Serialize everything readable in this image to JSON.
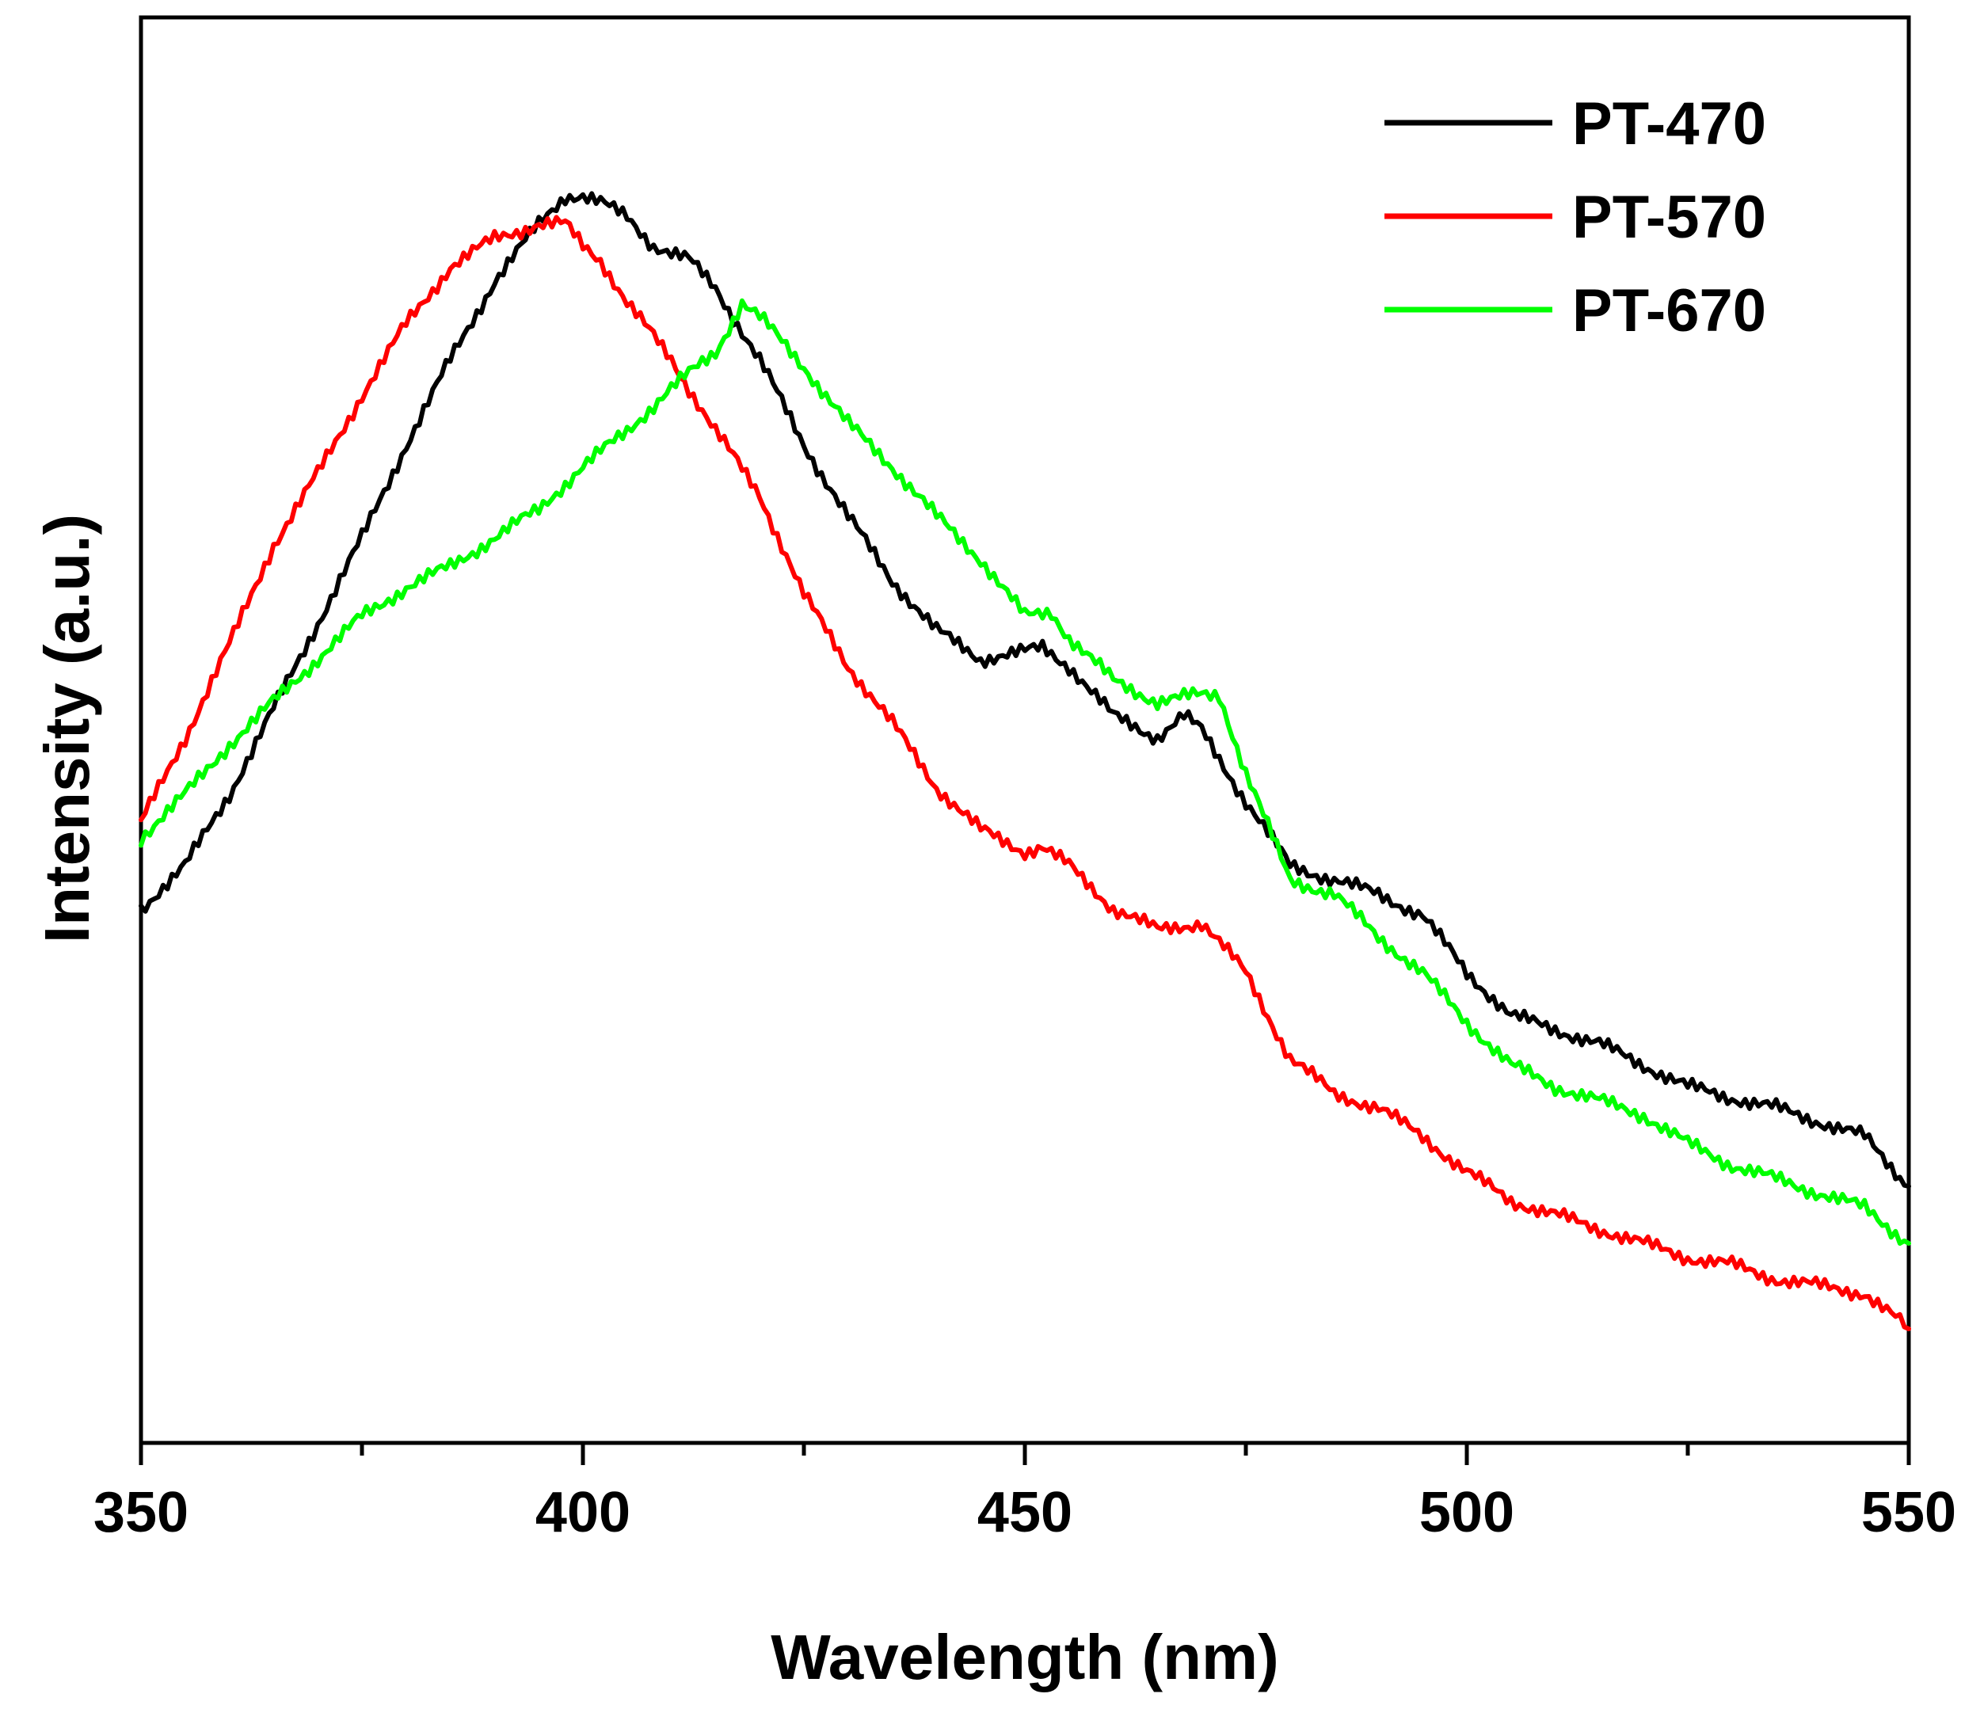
{
  "chart_data": {
    "type": "line",
    "title": "",
    "xlabel": "Wavelength (nm)",
    "ylabel": "Intensity (a.u.)",
    "xlim": [
      350,
      550
    ],
    "ylim": [
      0,
      100
    ],
    "xticks": [
      350,
      400,
      450,
      500,
      550
    ],
    "xticks_minor": [
      375,
      425,
      475,
      525
    ],
    "y_tick_labels": false,
    "grid": false,
    "legend_position": "top-right",
    "series": [
      {
        "name": "PT-470",
        "color": "#000000",
        "x": [
          350,
          355,
          360,
          365,
          370,
          375,
          380,
          385,
          390,
          395,
          398,
          400,
          402,
          405,
          408,
          412,
          415,
          420,
          425,
          430,
          435,
          440,
          445,
          450,
          452,
          455,
          460,
          465,
          468,
          470,
          475,
          480,
          485,
          490,
          495,
          500,
          505,
          510,
          515,
          520,
          525,
          530,
          535,
          540,
          545,
          550
        ],
        "y": [
          37.5,
          40.5,
          45.5,
          51.5,
          57.5,
          63.5,
          70.0,
          76.0,
          81.5,
          85.5,
          87.5,
          87.5,
          87.0,
          86.0,
          84.0,
          83.0,
          81.0,
          76.0,
          70.0,
          65.0,
          60.5,
          57.0,
          55.0,
          55.5,
          55.8,
          54.5,
          51.0,
          49.5,
          51.0,
          50.0,
          45.0,
          40.5,
          39.5,
          38.5,
          37.0,
          33.0,
          30.0,
          29.0,
          28.0,
          26.5,
          25.0,
          24.2,
          23.5,
          22.5,
          21.5,
          18.0
        ]
      },
      {
        "name": "PT-570",
        "color": "#ff0000",
        "x": [
          350,
          355,
          360,
          365,
          370,
          375,
          380,
          385,
          390,
          395,
          398,
          400,
          402,
          405,
          410,
          415,
          420,
          425,
          430,
          435,
          440,
          445,
          450,
          452,
          455,
          460,
          465,
          470,
          475,
          480,
          485,
          490,
          495,
          500,
          505,
          510,
          515,
          520,
          525,
          530,
          535,
          540,
          545,
          550
        ],
        "y": [
          43.5,
          49.5,
          56.0,
          63.0,
          68.0,
          73.5,
          78.5,
          82.5,
          84.5,
          85.5,
          85.5,
          84.0,
          83.0,
          80.0,
          76.0,
          71.0,
          66.5,
          59.5,
          54.5,
          50.5,
          46.0,
          43.0,
          41.5,
          41.8,
          40.5,
          37.5,
          36.0,
          36.5,
          33.0,
          27.0,
          24.5,
          23.5,
          21.5,
          19.0,
          17.0,
          16.0,
          15.0,
          14.0,
          13.0,
          12.5,
          11.5,
          11.0,
          10.5,
          8.0
        ]
      },
      {
        "name": "PT-670",
        "color": "#00ff00",
        "x": [
          350,
          355,
          360,
          365,
          370,
          375,
          380,
          385,
          390,
          395,
          400,
          405,
          410,
          415,
          418,
          420,
          425,
          430,
          435,
          440,
          445,
          450,
          453,
          455,
          460,
          465,
          470,
          472,
          475,
          480,
          485,
          490,
          495,
          500,
          505,
          510,
          515,
          520,
          525,
          530,
          535,
          540,
          545,
          550
        ],
        "y": [
          42.5,
          45.5,
          49.0,
          52.0,
          55.0,
          58.0,
          60.0,
          61.5,
          63.5,
          65.5,
          68.5,
          71.0,
          74.0,
          76.5,
          80.0,
          79.0,
          75.5,
          71.5,
          68.5,
          65.0,
          62.0,
          58.0,
          58.3,
          56.5,
          53.5,
          52.0,
          52.5,
          52.5,
          47.0,
          39.5,
          38.5,
          35.5,
          33.0,
          29.5,
          26.5,
          25.0,
          24.0,
          23.0,
          21.0,
          19.5,
          18.5,
          17.5,
          16.5,
          14.0
        ]
      }
    ]
  }
}
